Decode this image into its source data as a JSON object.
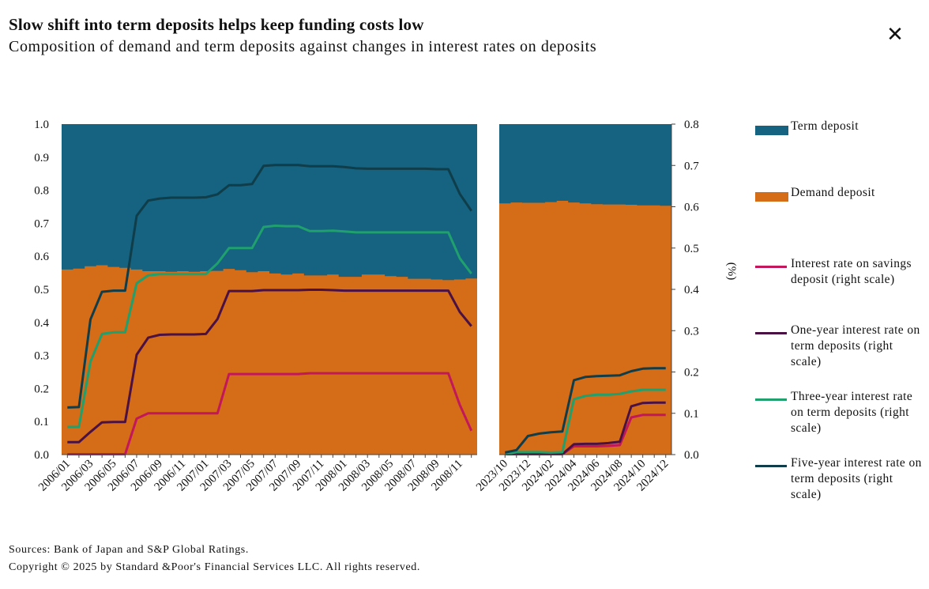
{
  "header": {
    "title": "Slow shift into term deposits helps keep funding costs low",
    "subtitle": "Composition of demand and term deposits against changes in interest rates on deposits",
    "close_icon": "close-icon"
  },
  "footer": {
    "sources": "Sources: Bank of Japan and S&P Global Ratings.",
    "copyright": "Copyright © 2025 by Standard &Poor's Financial Services LLC. All rights reserved."
  },
  "colors": {
    "term": "#156380",
    "demand": "#D56C17",
    "savings": "#C2185B",
    "one_year": "#4A1144",
    "three_year": "#1FA06D",
    "five_year": "#0F3D4A"
  },
  "chart_data": {
    "type": "area",
    "left_axis": {
      "ylim": [
        0,
        1.0
      ],
      "ticks": [
        "1.0",
        "0.9",
        "0.8",
        "0.7",
        "0.6",
        "0.5",
        "0.4",
        "0.3",
        "0.2",
        "0.1",
        "0.0"
      ]
    },
    "right_axis": {
      "label": "(%)",
      "ylim": [
        0,
        0.8
      ],
      "ticks": [
        "0.8",
        "0.7",
        "0.6",
        "0.5",
        "0.4",
        "0.3",
        "0.2",
        "0.1",
        "0.0"
      ]
    },
    "legend": [
      {
        "key": "term",
        "label": "Term deposit",
        "kind": "area"
      },
      {
        "key": "demand",
        "label": "Demand deposit",
        "kind": "area"
      },
      {
        "key": "savings",
        "label": "Interest rate on savings deposit (right scale)",
        "kind": "line"
      },
      {
        "key": "one_year",
        "label": "One-year interest rate on term deposits (right scale)",
        "kind": "line"
      },
      {
        "key": "three_year",
        "label": "Three-year interest rate on term deposits (right scale)",
        "kind": "line"
      },
      {
        "key": "five_year",
        "label": "Five-year interest rate on term deposits (right scale)",
        "kind": "line"
      }
    ],
    "panels": [
      {
        "tick_labels": [
          "2006/01",
          "2006/03",
          "2006/05",
          "2006/07",
          "2006/09",
          "2006/11",
          "2007/01",
          "2007/03",
          "2007/05",
          "2007/07",
          "2007/09",
          "2007/11",
          "2008/01",
          "2008/03",
          "2008/05",
          "2008/07",
          "2008/09",
          "2008/11"
        ],
        "x": [
          "2006/01",
          "2006/02",
          "2006/03",
          "2006/04",
          "2006/05",
          "2006/06",
          "2006/07",
          "2006/08",
          "2006/09",
          "2006/10",
          "2006/11",
          "2006/12",
          "2007/01",
          "2007/02",
          "2007/03",
          "2007/04",
          "2007/05",
          "2007/06",
          "2007/07",
          "2007/08",
          "2007/09",
          "2007/10",
          "2007/11",
          "2007/12",
          "2008/01",
          "2008/02",
          "2008/03",
          "2008/04",
          "2008/05",
          "2008/06",
          "2008/07",
          "2008/08",
          "2008/09",
          "2008/10",
          "2008/11",
          "2008/12"
        ],
        "demand_share": [
          0.56,
          0.563,
          0.57,
          0.573,
          0.568,
          0.565,
          0.56,
          0.555,
          0.555,
          0.553,
          0.555,
          0.553,
          0.555,
          0.556,
          0.562,
          0.558,
          0.552,
          0.555,
          0.548,
          0.545,
          0.548,
          0.542,
          0.542,
          0.545,
          0.538,
          0.538,
          0.545,
          0.545,
          0.54,
          0.538,
          0.532,
          0.532,
          0.53,
          0.528,
          0.53,
          0.533
        ],
        "series": [
          {
            "key": "savings",
            "values": [
              0.001,
              0.001,
              0.001,
              0.001,
              0.001,
              0.001,
              0.087,
              0.1,
              0.1,
              0.1,
              0.1,
              0.1,
              0.1,
              0.1,
              0.195,
              0.195,
              0.195,
              0.195,
              0.195,
              0.195,
              0.195,
              0.197,
              0.197,
              0.197,
              0.197,
              0.197,
              0.197,
              0.197,
              0.197,
              0.197,
              0.197,
              0.197,
              0.197,
              0.197,
              0.12,
              0.058
            ]
          },
          {
            "key": "one_year",
            "values": [
              0.03,
              0.03,
              0.055,
              0.078,
              0.079,
              0.079,
              0.242,
              0.283,
              0.29,
              0.291,
              0.291,
              0.291,
              0.292,
              0.328,
              0.396,
              0.396,
              0.396,
              0.398,
              0.398,
              0.398,
              0.398,
              0.399,
              0.399,
              0.398,
              0.397,
              0.397,
              0.397,
              0.397,
              0.397,
              0.397,
              0.397,
              0.397,
              0.397,
              0.397,
              0.345,
              0.311
            ]
          },
          {
            "key": "three_year",
            "values": [
              0.067,
              0.067,
              0.225,
              0.292,
              0.296,
              0.296,
              0.415,
              0.434,
              0.437,
              0.437,
              0.437,
              0.437,
              0.437,
              0.463,
              0.5,
              0.5,
              0.5,
              0.551,
              0.554,
              0.553,
              0.553,
              0.541,
              0.541,
              0.542,
              0.54,
              0.538,
              0.538,
              0.538,
              0.538,
              0.538,
              0.538,
              0.538,
              0.538,
              0.538,
              0.475,
              0.438
            ]
          },
          {
            "key": "five_year",
            "values": [
              0.114,
              0.115,
              0.327,
              0.394,
              0.397,
              0.397,
              0.578,
              0.615,
              0.62,
              0.622,
              0.622,
              0.622,
              0.623,
              0.63,
              0.652,
              0.652,
              0.655,
              0.699,
              0.701,
              0.701,
              0.701,
              0.698,
              0.698,
              0.698,
              0.696,
              0.693,
              0.692,
              0.692,
              0.692,
              0.692,
              0.692,
              0.692,
              0.691,
              0.691,
              0.631,
              0.59
            ]
          }
        ]
      },
      {
        "tick_labels": [
          "2023/10",
          "2023/12",
          "2024/02",
          "2024/04",
          "2024/06",
          "2024/08",
          "2024/10",
          "2024/12"
        ],
        "x": [
          "2023/10",
          "2023/11",
          "2023/12",
          "2024/01",
          "2024/02",
          "2024/03",
          "2024/04",
          "2024/05",
          "2024/06",
          "2024/07",
          "2024/08",
          "2024/09",
          "2024/10",
          "2024/11",
          "2024/12"
        ],
        "demand_share": [
          0.76,
          0.763,
          0.762,
          0.762,
          0.764,
          0.768,
          0.763,
          0.76,
          0.758,
          0.757,
          0.757,
          0.756,
          0.754,
          0.754,
          0.753
        ],
        "series": [
          {
            "key": "savings",
            "values": [
              0.001,
              0.001,
              0.001,
              0.001,
              0.001,
              0.001,
              0.02,
              0.02,
              0.02,
              0.021,
              0.023,
              0.09,
              0.096,
              0.096,
              0.096
            ]
          },
          {
            "key": "one_year",
            "values": [
              0.001,
              0.001,
              0.001,
              0.001,
              0.001,
              0.001,
              0.025,
              0.026,
              0.026,
              0.028,
              0.031,
              0.117,
              0.125,
              0.126,
              0.126
            ]
          },
          {
            "key": "three_year",
            "values": [
              0.001,
              0.006,
              0.006,
              0.006,
              0.005,
              0.006,
              0.134,
              0.142,
              0.145,
              0.145,
              0.147,
              0.153,
              0.157,
              0.157,
              0.157
            ]
          },
          {
            "key": "five_year",
            "values": [
              0.005,
              0.011,
              0.045,
              0.051,
              0.054,
              0.056,
              0.18,
              0.188,
              0.19,
              0.191,
              0.192,
              0.202,
              0.208,
              0.209,
              0.209
            ]
          }
        ]
      }
    ]
  }
}
